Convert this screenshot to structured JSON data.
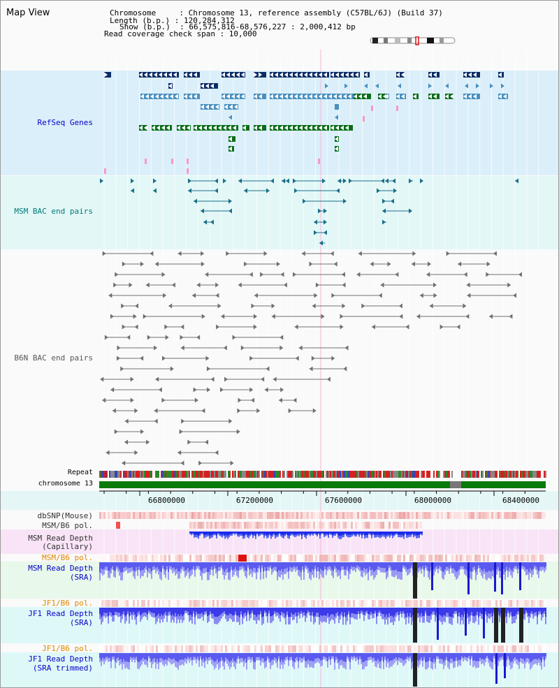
{
  "header": {
    "title": "Map View",
    "info_lines": [
      "Chromosome     : Chromosome 13, reference assembly (C57BL/6J) (Build 37)",
      "Length (b.p.) : 120,284,312",
      "Show (b.p.)  : 66,575,816-68,576,227 : 2,000,412 bp",
      "Read coverage check span : 10,000"
    ]
  },
  "tracks": {
    "refseq": "RefSeq Genes",
    "msm_bac": "MSM BAC end pairs",
    "b6n_bac": "B6N BAC end pairs",
    "repeat": "Repeat",
    "chromosome": "chromosome 13",
    "dbsnp": "dbSNP(Mouse)",
    "msm_b6_pol_1": "MSM/B6 pol.",
    "msm_depth_cap_1": "MSM Read Depth",
    "msm_depth_cap_2": "(Capillary)",
    "msm_b6_pol_2": "MSM/B6 pol.",
    "msm_depth_sra_1": "MSM Read Depth",
    "msm_depth_sra_2": "(SRA)",
    "jf1_b6_pol_1": "JF1/B6 pol.",
    "jf1_depth_sra_1": "JF1 Read Depth",
    "jf1_depth_sra_2": "(SRA)",
    "jf1_b6_pol_2": "JF1/B6 pol.",
    "jf1_depth_trim_1": "JF1 Read Depth",
    "jf1_depth_trim_2": "(SRA trimmed)"
  },
  "scale": {
    "ticks": [
      "66800000",
      "67200000",
      "67600000",
      "68000000",
      "68400000"
    ]
  },
  "colors": {
    "refseq_bg": "#dbeffa",
    "msm_bac_bg": "#e3f7f7",
    "navy_gene": "#0d2d66",
    "blue_gene": "#4a90c0",
    "green_gene": "#0a6e1a",
    "bac_teal": "#1a6f8a",
    "bac_gray": "#707070",
    "chrom_green": "#0a7a0a",
    "depth_blue": "#2a2ae6",
    "label_blue": "#0000cc",
    "label_teal": "#007a7a",
    "label_orange": "#dd8800"
  }
}
